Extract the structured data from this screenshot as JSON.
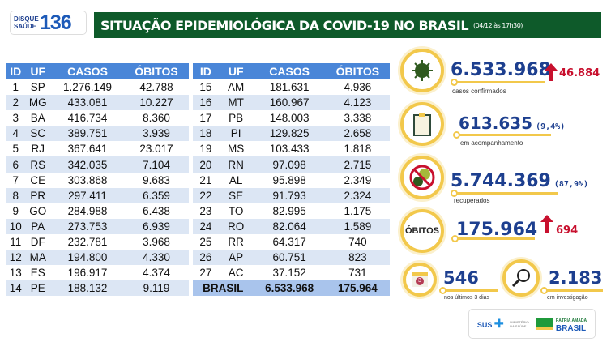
{
  "header": {
    "logo_line1": "DISQUE",
    "logo_line2": "SAÚDE",
    "logo_number": "136",
    "title": "SITUAÇÃO EPIDEMIOLÓGICA DA COVID-19 NO BRASIL",
    "date": "(04/12 às 17h30)"
  },
  "table": {
    "columns": [
      "ID",
      "UF",
      "CASOS",
      "ÓBITOS"
    ],
    "left": [
      [
        "1",
        "SP",
        "1.276.149",
        "42.788"
      ],
      [
        "2",
        "MG",
        "433.081",
        "10.227"
      ],
      [
        "3",
        "BA",
        "416.734",
        "8.360"
      ],
      [
        "4",
        "SC",
        "389.751",
        "3.939"
      ],
      [
        "5",
        "RJ",
        "367.641",
        "23.017"
      ],
      [
        "6",
        "RS",
        "342.035",
        "7.104"
      ],
      [
        "7",
        "CE",
        "303.868",
        "9.683"
      ],
      [
        "8",
        "PR",
        "297.411",
        "6.359"
      ],
      [
        "9",
        "GO",
        "284.988",
        "6.438"
      ],
      [
        "10",
        "PA",
        "273.753",
        "6.939"
      ],
      [
        "11",
        "DF",
        "232.781",
        "3.968"
      ],
      [
        "12",
        "MA",
        "194.800",
        "4.330"
      ],
      [
        "13",
        "ES",
        "196.917",
        "4.374"
      ],
      [
        "14",
        "PE",
        "188.132",
        "9.119"
      ]
    ],
    "right": [
      [
        "15",
        "AM",
        "181.631",
        "4.936"
      ],
      [
        "16",
        "MT",
        "160.967",
        "4.123"
      ],
      [
        "17",
        "PB",
        "148.003",
        "3.338"
      ],
      [
        "18",
        "PI",
        "129.825",
        "2.658"
      ],
      [
        "19",
        "MS",
        "103.433",
        "1.818"
      ],
      [
        "20",
        "RN",
        "97.098",
        "2.715"
      ],
      [
        "21",
        "AL",
        "95.898",
        "2.349"
      ],
      [
        "22",
        "SE",
        "91.793",
        "2.324"
      ],
      [
        "23",
        "TO",
        "82.995",
        "1.175"
      ],
      [
        "24",
        "RO",
        "82.064",
        "1.589"
      ],
      [
        "25",
        "RR",
        "64.317",
        "740"
      ],
      [
        "26",
        "AP",
        "60.751",
        "823"
      ],
      [
        "27",
        "AC",
        "37.152",
        "731"
      ]
    ],
    "total": {
      "label": "BRASIL",
      "casos": "6.533.968",
      "obitos": "175.964"
    }
  },
  "stats": {
    "confirmed": {
      "value": "6.533.968",
      "increase": "46.884",
      "label": "casos confirmados"
    },
    "monitoring": {
      "value": "613.635",
      "pct": "(9,4%)",
      "label": "em acompanhamento"
    },
    "recovered": {
      "value": "5.744.369",
      "pct": "(87,9%)",
      "label": "recuperados"
    },
    "deaths": {
      "badge": "ÓBITOS",
      "value": "175.964",
      "increase": "694"
    },
    "recent": {
      "value": "546",
      "label": "nos últimos 3 dias",
      "calendar_day": "3"
    },
    "investigation": {
      "value": "2.183",
      "label": "em investigação"
    }
  },
  "footer": {
    "sus": "SUS",
    "ministry": "MINISTÉRIO DA SAÚDE",
    "patria": "PÁTRIA AMADA",
    "brasil": "BRASIL"
  },
  "colors": {
    "green": "#0e5a2a",
    "blue": "#1d3f8f",
    "header_blue": "#4a86d8",
    "red": "#c8102e",
    "gold": "#f2c84b"
  }
}
